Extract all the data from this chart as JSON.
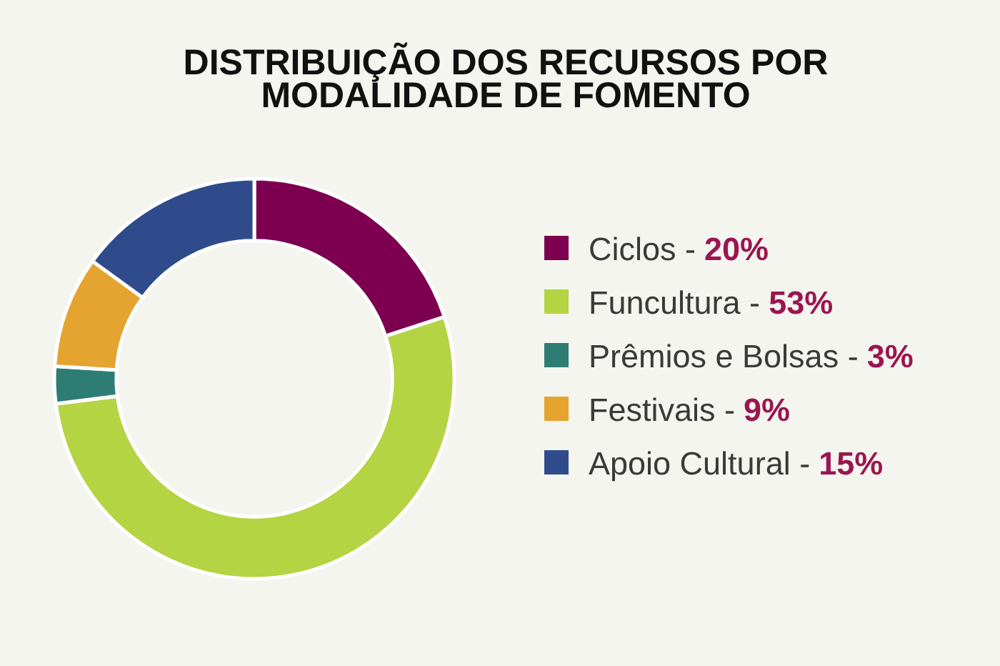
{
  "chart_data": {
    "type": "donut",
    "title": "DISTRIBUIÇÃO DOS RECURSOS POR MODALIDADE DE FOMENTO",
    "categories": [
      "Ciclos -",
      "Funcultura -",
      "Prêmios e Bolsas -",
      "Festivais -",
      "Apoio Cultural -"
    ],
    "values": [
      20,
      53,
      3,
      9,
      15
    ],
    "colors": [
      "#7d0050",
      "#b5d443",
      "#2e7d74",
      "#e5a430",
      "#2f4b8c"
    ],
    "value_labels": [
      "20%",
      "53%",
      "3%",
      "9%",
      "15%"
    ],
    "legend": "right"
  }
}
